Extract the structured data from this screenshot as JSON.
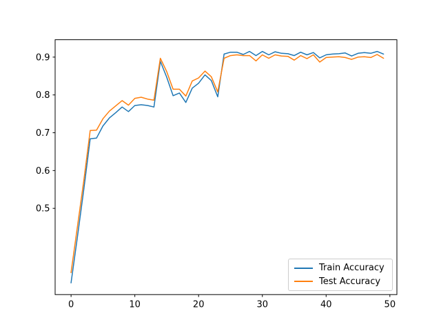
{
  "chart_data": {
    "type": "line",
    "title": "",
    "xlabel": "",
    "ylabel": "",
    "grid": false,
    "x": [
      0,
      1,
      2,
      3,
      4,
      5,
      6,
      7,
      8,
      9,
      10,
      11,
      12,
      13,
      14,
      15,
      16,
      17,
      18,
      19,
      20,
      21,
      22,
      23,
      24,
      25,
      26,
      27,
      28,
      29,
      30,
      31,
      32,
      33,
      34,
      35,
      36,
      37,
      38,
      39,
      40,
      41,
      42,
      43,
      44,
      45,
      46,
      47,
      48,
      49
    ],
    "series": [
      {
        "name": "Train Accuracy",
        "color": "#1f77b4",
        "values": [
          0.303,
          0.425,
          0.55,
          0.684,
          0.686,
          0.718,
          0.739,
          0.753,
          0.768,
          0.756,
          0.772,
          0.774,
          0.772,
          0.768,
          0.889,
          0.847,
          0.798,
          0.805,
          0.78,
          0.818,
          0.831,
          0.853,
          0.838,
          0.795,
          0.908,
          0.913,
          0.913,
          0.907,
          0.915,
          0.904,
          0.915,
          0.906,
          0.914,
          0.91,
          0.909,
          0.904,
          0.913,
          0.906,
          0.912,
          0.898,
          0.906,
          0.908,
          0.909,
          0.911,
          0.903,
          0.91,
          0.912,
          0.91,
          0.915,
          0.908
        ]
      },
      {
        "name": "Test Accuracy",
        "color": "#ff7f0e",
        "values": [
          0.33,
          0.452,
          0.573,
          0.706,
          0.707,
          0.737,
          0.757,
          0.771,
          0.785,
          0.773,
          0.791,
          0.794,
          0.789,
          0.786,
          0.897,
          0.862,
          0.815,
          0.815,
          0.797,
          0.837,
          0.845,
          0.863,
          0.848,
          0.808,
          0.897,
          0.904,
          0.906,
          0.904,
          0.904,
          0.89,
          0.906,
          0.897,
          0.906,
          0.903,
          0.902,
          0.892,
          0.904,
          0.896,
          0.906,
          0.887,
          0.899,
          0.9,
          0.901,
          0.899,
          0.894,
          0.9,
          0.901,
          0.899,
          0.907,
          0.897
        ]
      }
    ],
    "xlim": [
      -2.5,
      51.1
    ],
    "ylim": [
      0.272,
      0.946
    ],
    "xticks": {
      "values": [
        0,
        10,
        20,
        30,
        40,
        50
      ],
      "labels": [
        "0",
        "10",
        "20",
        "30",
        "40",
        "50"
      ]
    },
    "yticks": {
      "values": [
        0.5,
        0.6,
        0.7,
        0.8,
        0.9
      ],
      "labels": [
        "0.5",
        "0.6",
        "0.7",
        "0.8",
        "0.9"
      ]
    },
    "legend": {
      "position": "lower right"
    }
  },
  "colors": {
    "background": "#ffffff",
    "axes_edge": "#000000",
    "tick_label": "#000000",
    "legend_border": "#cccccc"
  }
}
